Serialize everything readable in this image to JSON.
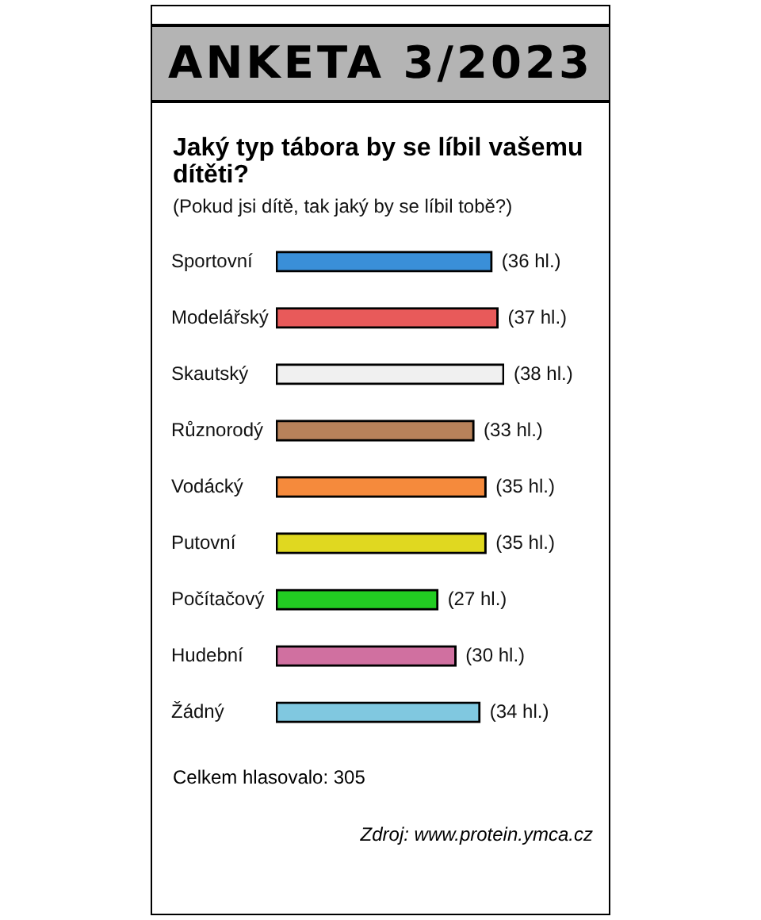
{
  "chart_data": {
    "type": "bar",
    "orientation": "horizontal",
    "title": "ANKETA 3/2023",
    "subtitle": "Jaký typ tábora by se líbil vašemu dítěti?",
    "categories": [
      "Sportovní",
      "Modelářský",
      "Skautský",
      "Různorodý",
      "Vodácký",
      "Putovní",
      "Počítačový",
      "Hudební",
      "Žádný"
    ],
    "values": [
      36,
      37,
      38,
      33,
      35,
      35,
      27,
      30,
      34
    ],
    "value_labels": [
      "(36 hl.)",
      "(37 hl.)",
      "(38 hl.)",
      "(33 hl.)",
      "(35 hl.)",
      "(35 hl.)",
      "(27 hl.)",
      "(30 hl.)",
      "(34 hl.)"
    ],
    "colors": [
      "#3a8fd8",
      "#e85a5a",
      "#f0f0f0",
      "#b8825a",
      "#f58a3c",
      "#e0d820",
      "#22cc22",
      "#d070a0",
      "#80c8e0"
    ],
    "tick_labels": "y",
    "annotations": [
      "(Pokud jsi dítě, tak jaký by se líbil tobě?)",
      "Celkem hlasovalo: 305",
      "Zdroj: www.protein.ymca.cz"
    ]
  }
}
